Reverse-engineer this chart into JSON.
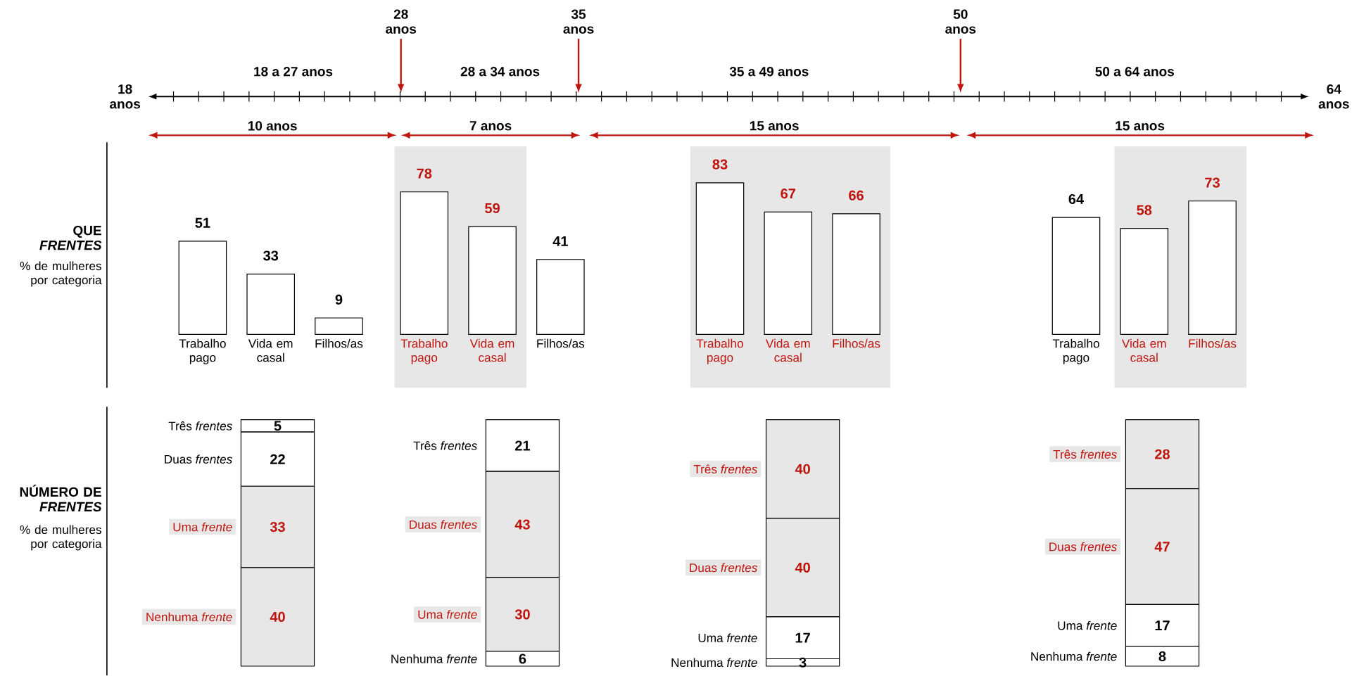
{
  "chart_data": [
    {
      "type": "other",
      "annotations": [
        "18 anos",
        "28 anos",
        "35 anos",
        "50 anos",
        "64 anos",
        "18 a 27 anos",
        "28 a 34 anos",
        "35 a 49 anos",
        "50 a 64 anos",
        "10 anos",
        "7 anos",
        "15 anos",
        "15 anos",
        "QUE *FRENTES*",
        "% de mulheres por categoria",
        "NÚMERO DE *FRENTES*",
        "% de mulheres por categoria"
      ]
    },
    {
      "type": "bar",
      "categories": [
        "Trabalho pago",
        "Vida em casal",
        "Filhos/as"
      ],
      "values": [
        51,
        33,
        9
      ],
      "color": "#ffffff",
      "data_labels": true
    },
    {
      "type": "bar",
      "categories": [
        "Trabalho pago",
        "Vida em casal",
        "Filhos/as"
      ],
      "values": [
        78,
        59,
        41
      ],
      "color": "#ffffff",
      "data_labels": true,
      "bands": [
        {
          "axis": "x",
          "from": "Trabalho pago",
          "to": "Vida em casal",
          "color": "#e6e7e6"
        }
      ]
    },
    {
      "type": "bar",
      "categories": [
        "Trabalho pago",
        "Vida em casal",
        "Filhos/as"
      ],
      "values": [
        83,
        67,
        66
      ],
      "color": "#ffffff",
      "data_labels": true,
      "bands": [
        {
          "axis": "x",
          "from": "Trabalho pago",
          "to": "Filhos/as",
          "color": "#e6e7e6"
        }
      ]
    },
    {
      "type": "bar",
      "categories": [
        "Trabalho pago",
        "Vida em casal",
        "Filhos/as"
      ],
      "values": [
        64,
        58,
        73
      ],
      "color": "#ffffff",
      "data_labels": true,
      "bands": [
        {
          "axis": "x",
          "from": "Vida em casal",
          "to": "Filhos/as",
          "color": "#e6e7e6"
        }
      ]
    },
    {
      "type": "bar",
      "stacked": true,
      "categories": [
        null
      ],
      "data_labels": true,
      "series": [
        {
          "name": "Nenhuma *frente*",
          "color": "#e6e7e6",
          "values": [
            40
          ]
        },
        {
          "name": "Uma *frente*",
          "color": "#e6e7e6",
          "values": [
            33
          ]
        },
        {
          "name": "Duas *frentes*",
          "color": "#ffffff",
          "values": [
            22
          ]
        },
        {
          "name": "Três *frentes*",
          "color": "#ffffff",
          "values": [
            5
          ]
        }
      ]
    },
    {
      "type": "bar",
      "stacked": true,
      "categories": [
        null
      ],
      "data_labels": true,
      "series": [
        {
          "name": "Nenhuma *frente*",
          "color": "#ffffff",
          "values": [
            6
          ]
        },
        {
          "name": "Uma *frente*",
          "color": "#e6e7e6",
          "values": [
            30
          ]
        },
        {
          "name": "Duas *frentes*",
          "color": "#e6e7e6",
          "values": [
            43
          ]
        },
        {
          "name": "Três *frentes*",
          "color": "#ffffff",
          "values": [
            21
          ]
        }
      ]
    },
    {
      "type": "bar",
      "stacked": true,
      "categories": [
        null
      ],
      "data_labels": true,
      "series": [
        {
          "name": "Nenhuma *frente*",
          "color": "#ffffff",
          "values": [
            3
          ]
        },
        {
          "name": "Uma *frente*",
          "color": "#ffffff",
          "values": [
            17
          ]
        },
        {
          "name": "Duas *frentes*",
          "color": "#e6e7e6",
          "values": [
            40
          ]
        },
        {
          "name": "Três *frentes*",
          "color": "#e6e7e6",
          "values": [
            40
          ]
        }
      ]
    },
    {
      "type": "bar",
      "stacked": true,
      "categories": [
        null
      ],
      "data_labels": true,
      "series": [
        {
          "name": "Nenhuma *frente*",
          "color": "#ffffff",
          "values": [
            8
          ]
        },
        {
          "name": "Uma *frente*",
          "color": "#ffffff",
          "values": [
            17
          ]
        },
        {
          "name": "Duas *frentes*",
          "color": "#e6e7e6",
          "values": [
            47
          ]
        },
        {
          "name": "Três *frentes*",
          "color": "#e6e7e6",
          "values": [
            28
          ]
        }
      ]
    }
  ]
}
